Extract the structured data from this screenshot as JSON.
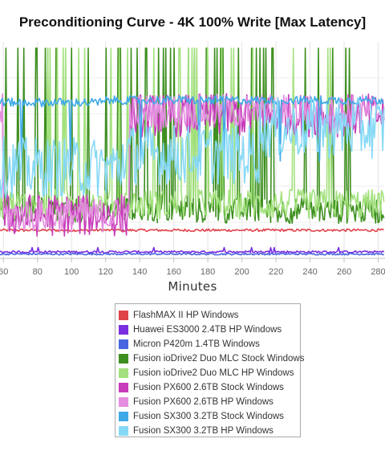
{
  "chart_data": {
    "type": "line",
    "title": "Preconditioning Curve - 4K 100% Write [Max Latency]",
    "subtitle": "",
    "xlabel": "Minutes",
    "ylabel": "",
    "x_ticks": [
      60,
      80,
      100,
      120,
      140,
      160,
      180,
      200,
      220,
      240,
      260,
      280
    ],
    "xlim": [
      58,
      284
    ],
    "ylim": [
      0,
      100
    ],
    "y_ticks_visible": false,
    "grid": true,
    "legend_position": "bottom",
    "series": [
      {
        "name": "FlashMAX II HP Windows",
        "color": "#e0424a",
        "behavior": "flat",
        "level": 13,
        "noise": 0.6,
        "spike_prob": 0.0,
        "spike_level": 0,
        "segments": []
      },
      {
        "name": "Huawei ES3000 2.4TB HP Windows",
        "color": "#7a2ee0",
        "behavior": "flat",
        "level": 3,
        "noise": 0.5,
        "spike_prob": 0.02,
        "spike_level": 5,
        "segments": []
      },
      {
        "name": "Micron P420m 1.4TB Windows",
        "color": "#4866e0",
        "behavior": "flat",
        "level": 2,
        "noise": 0.4,
        "spike_prob": 0.0,
        "spike_level": 0,
        "segments": []
      },
      {
        "name": "Fusion ioDrive2 Duo MLC Stock Windows",
        "color": "#3d8f1f",
        "behavior": "spiky",
        "level": 22,
        "noise": 6,
        "spike_prob": 0.12,
        "spike_level": 97,
        "segments": []
      },
      {
        "name": "Fusion ioDrive2 Duo MLC HP Windows",
        "color": "#a4e17e",
        "behavior": "spiky",
        "level": 25,
        "noise": 7,
        "spike_prob": 0.09,
        "spike_level": 97,
        "segments": []
      },
      {
        "name": "Fusion PX600 2.6TB Stock Windows",
        "color": "#c73cba",
        "behavior": "band",
        "level": 66,
        "noise": 10,
        "spike_prob": 0.0,
        "spike_level": 0,
        "segments": [
          [
            58,
            60,
            68
          ],
          [
            60,
            134,
            20
          ],
          [
            134,
            284,
            66
          ]
        ]
      },
      {
        "name": "Fusion PX600 2.6TB HP Windows",
        "color": "#e48ee0",
        "behavior": "band",
        "level": 68,
        "noise": 8,
        "spike_prob": 0.0,
        "spike_level": 0,
        "segments": [
          [
            58,
            60,
            68
          ],
          [
            60,
            134,
            20
          ],
          [
            134,
            284,
            68
          ]
        ]
      },
      {
        "name": "Fusion SX300 3.2TB Stock Windows",
        "color": "#3fa9e8",
        "behavior": "band",
        "level": 72,
        "noise": 2,
        "spike_prob": 0.04,
        "spike_level": 45,
        "segments": [
          [
            58,
            120,
            72
          ],
          [
            120,
            284,
            73
          ]
        ]
      },
      {
        "name": "Fusion SX300 3.2TB HP Windows",
        "color": "#86d9f6",
        "behavior": "band",
        "level": 45,
        "noise": 14,
        "spike_prob": 0.0,
        "spike_level": 0,
        "segments": [
          [
            58,
            130,
            42
          ],
          [
            130,
            210,
            48
          ],
          [
            210,
            284,
            60
          ]
        ]
      }
    ]
  }
}
